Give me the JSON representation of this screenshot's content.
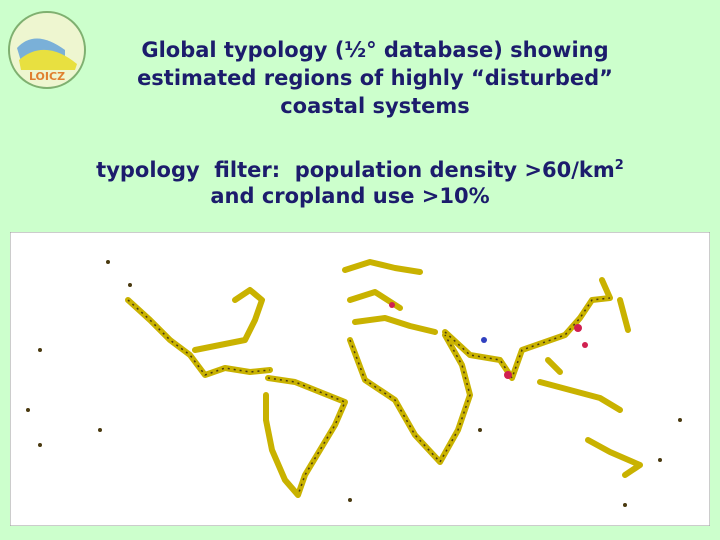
{
  "logo": {
    "text": "LOICZ"
  },
  "title": [
    "Global typology (½° database) showing",
    "estimated regions of highly “disturbed”",
    "coastal systems"
  ],
  "subtitle": {
    "line1": "typology  filter:  population density >60/km",
    "line1_sup": "2",
    "line2": "and cropland use >10%"
  }
}
